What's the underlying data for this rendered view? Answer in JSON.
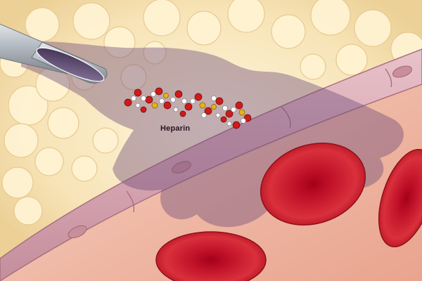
{
  "illustration": {
    "molecule_label": "Heparin",
    "colors": {
      "fat_tissue": "#f6e2b8",
      "fat_cell_highlight": "#fff4d6",
      "vessel_wall": "#d9a9b4",
      "blood_plasma": "#f0b9a6",
      "red_blood_cell": "#c4182a",
      "injected_drug_cloud": "#6e4a78",
      "needle": "#a9b0b8",
      "atom_red": "#d21a1a",
      "atom_white": "#ffffff",
      "atom_yellow": "#e8b21c"
    }
  }
}
